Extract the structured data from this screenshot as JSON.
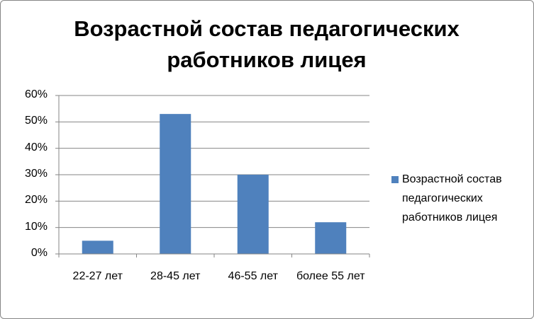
{
  "chart_data": {
    "type": "bar",
    "title": "Возрастной состав педагогических работников лицея",
    "categories": [
      "22-27 лет",
      "28-45 лет",
      "46-55 лет",
      "более 55 лет"
    ],
    "series": [
      {
        "name": "Возрастной состав педагогических работников лицея",
        "color": "#4f81bd",
        "values": [
          5,
          53,
          30,
          12
        ]
      }
    ],
    "ylim": [
      0,
      60
    ],
    "yticks": [
      {
        "value": 0,
        "label": "0%"
      },
      {
        "value": 10,
        "label": "10%"
      },
      {
        "value": 20,
        "label": "20%"
      },
      {
        "value": 30,
        "label": "30%"
      },
      {
        "value": 40,
        "label": "40%"
      },
      {
        "value": 50,
        "label": "50%"
      },
      {
        "value": 60,
        "label": "60%"
      }
    ],
    "grid": true,
    "legend": "right"
  }
}
